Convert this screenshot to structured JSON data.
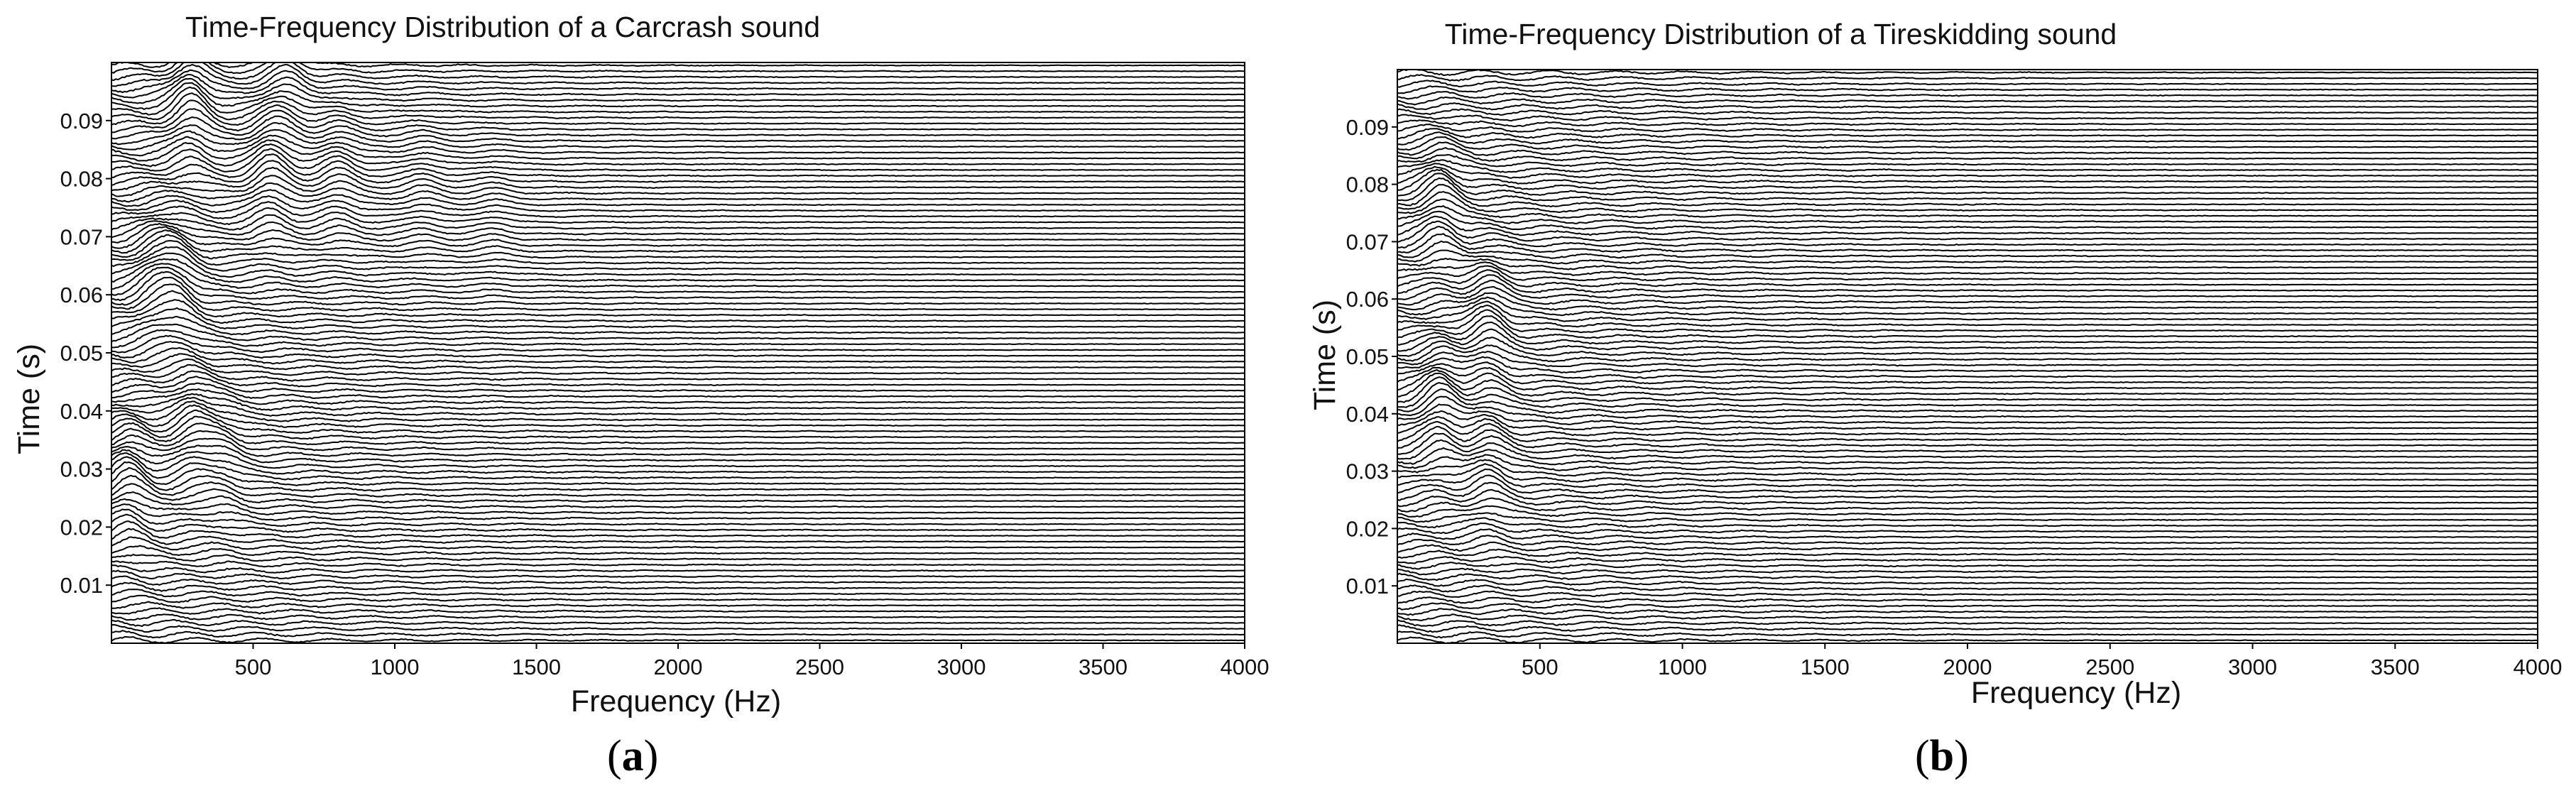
{
  "chart_data": [
    {
      "type": "waterfall",
      "title": "Time-Frequency Distribution of a Carcrash sound",
      "xlabel": "Frequency (Hz)",
      "ylabel": "Time (s)",
      "xlim": [
        0,
        4000
      ],
      "ylim": [
        0,
        0.1
      ],
      "xticks": [
        500,
        1000,
        1500,
        2000,
        2500,
        3000,
        3500,
        4000
      ],
      "yticks": [
        0.01,
        0.02,
        0.03,
        0.04,
        0.05,
        0.06,
        0.07,
        0.08,
        0.09
      ],
      "traces": 100,
      "grid": false,
      "peaks": [
        {
          "freq": 60,
          "time": 0.027,
          "amplitude": 1.0
        },
        {
          "freq": 150,
          "time": 0.062,
          "amplitude": 0.8
        },
        {
          "freq": 230,
          "time": 0.06,
          "amplitude": 1.0
        },
        {
          "freq": 280,
          "time": 0.092,
          "amplitude": 1.2
        },
        {
          "freq": 290,
          "time": 0.036,
          "amplitude": 0.9
        },
        {
          "freq": 390,
          "time": 0.031,
          "amplitude": 0.6
        },
        {
          "freq": 560,
          "time": 0.08,
          "amplitude": 1.0
        },
        {
          "freq": 620,
          "time": 0.097,
          "amplitude": 0.8
        },
        {
          "freq": 800,
          "time": 0.08,
          "amplitude": 0.7
        },
        {
          "freq": 1100,
          "time": 0.078,
          "amplitude": 0.4
        },
        {
          "freq": 1350,
          "time": 0.073,
          "amplitude": 0.3
        }
      ],
      "caption": "a"
    },
    {
      "type": "waterfall",
      "title": "Time-Frequency Distribution of a Tireskidding sound",
      "xlabel": "Frequency (Hz)",
      "ylabel": "Time (s)",
      "xlim": [
        0,
        4000
      ],
      "ylim": [
        0,
        0.1
      ],
      "xticks": [
        500,
        1000,
        1500,
        2000,
        2500,
        3000,
        3500,
        4000
      ],
      "yticks": [
        0.01,
        0.02,
        0.03,
        0.04,
        0.05,
        0.06,
        0.07,
        0.08,
        0.09
      ],
      "traces": 100,
      "grid": false,
      "peaks": [
        {
          "freq": 150,
          "time": 0.075,
          "amplitude": 1.0
        },
        {
          "freq": 150,
          "time": 0.04,
          "amplitude": 1.1
        },
        {
          "freq": 320,
          "time": 0.055,
          "amplitude": 1.0
        },
        {
          "freq": 320,
          "time": 0.03,
          "amplitude": 0.8
        }
      ],
      "caption": "b"
    }
  ]
}
